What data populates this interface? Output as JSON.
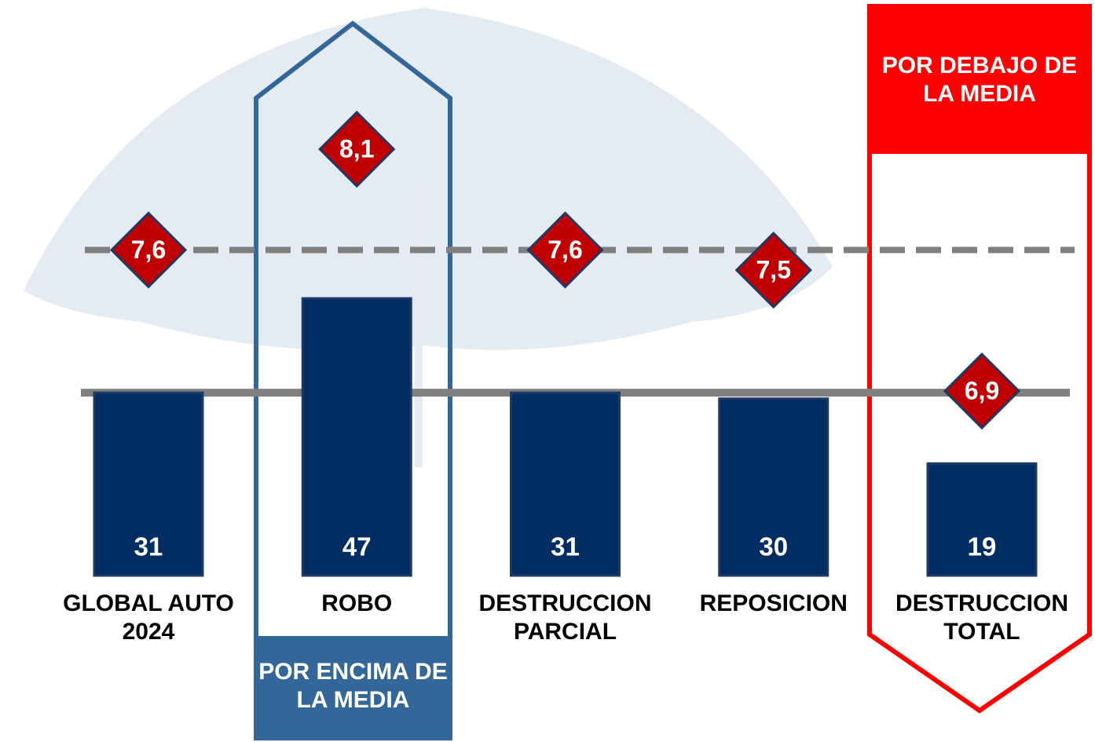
{
  "chart_data": {
    "type": "bar",
    "categories": [
      "GLOBAL AUTO 2024",
      "ROBO",
      "DESTRUCCION PARCIAL",
      "REPOSICION",
      "DESTRUCCION TOTAL"
    ],
    "series": [
      {
        "name": null,
        "color": "#002d62",
        "values": [
          31,
          47,
          31,
          30,
          19
        ]
      },
      {
        "name": null,
        "color": "#c00000",
        "values": [
          7.6,
          8.1,
          7.6,
          7.5,
          6.9
        ],
        "value_labels": [
          "7,6",
          "8,1",
          "7,6",
          "7,5",
          "6,9"
        ]
      }
    ],
    "annotations": [
      "POR ENCIMA DE LA MEDIA",
      "POR DEBAJO DE LA MEDIA"
    ]
  }
}
